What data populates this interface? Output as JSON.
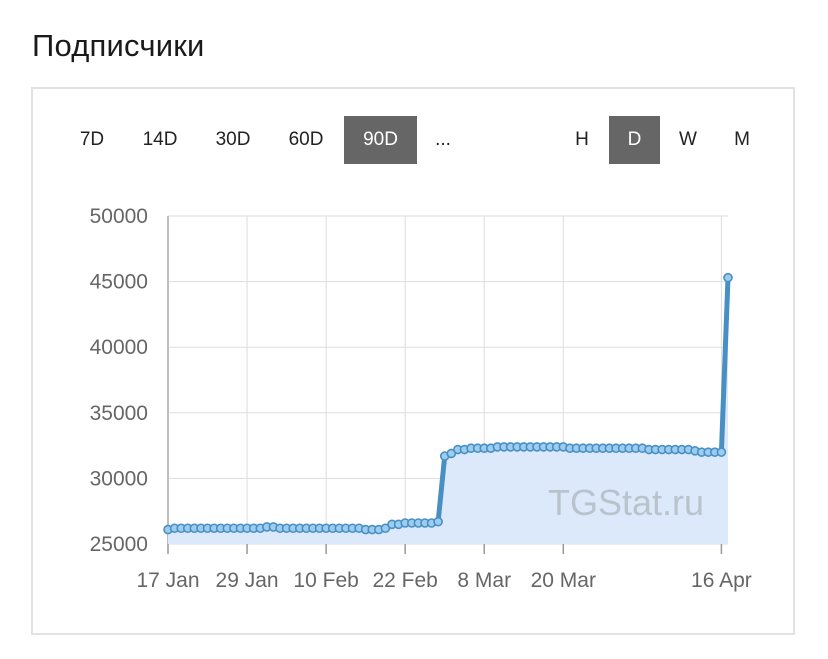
{
  "page": {
    "title": "Подписчики"
  },
  "range_buttons": [
    {
      "label": "7D",
      "active": false
    },
    {
      "label": "14D",
      "active": false
    },
    {
      "label": "30D",
      "active": false
    },
    {
      "label": "60D",
      "active": false
    },
    {
      "label": "90D",
      "active": true
    },
    {
      "label": "...",
      "active": false
    }
  ],
  "granularity_buttons": [
    {
      "label": "H",
      "active": false
    },
    {
      "label": "D",
      "active": true
    },
    {
      "label": "W",
      "active": false
    },
    {
      "label": "M",
      "active": false
    }
  ],
  "watermark": "TGStat.ru",
  "colors": {
    "line": "#4a8fc4",
    "fill": "#dce9fb",
    "marker_fill": "#9dcdee",
    "active_button": "#666666"
  },
  "chart_data": {
    "type": "area",
    "ylim": [
      25000,
      50000
    ],
    "yticks": [
      25000,
      30000,
      35000,
      40000,
      45000,
      50000
    ],
    "ytick_labels": [
      "25000",
      "30000",
      "35000",
      "40000",
      "45000",
      "50000"
    ],
    "xtick_labels": [
      "17 Jan",
      "29 Jan",
      "10 Feb",
      "22 Feb",
      "8 Mar",
      "20 Mar",
      "16 Apr"
    ],
    "xtick_index": [
      0,
      12,
      24,
      36,
      48,
      60,
      84
    ],
    "grid": true,
    "start_label": "17 Jan",
    "end_label": "16 Apr",
    "values": [
      26100,
      26200,
      26200,
      26200,
      26200,
      26200,
      26200,
      26200,
      26200,
      26200,
      26200,
      26200,
      26200,
      26200,
      26200,
      26300,
      26300,
      26200,
      26200,
      26200,
      26200,
      26200,
      26200,
      26200,
      26200,
      26200,
      26200,
      26200,
      26200,
      26200,
      26100,
      26100,
      26100,
      26200,
      26500,
      26500,
      26600,
      26600,
      26600,
      26600,
      26600,
      26700,
      31700,
      31900,
      32200,
      32200,
      32300,
      32300,
      32300,
      32300,
      32400,
      32400,
      32400,
      32400,
      32400,
      32400,
      32400,
      32400,
      32400,
      32400,
      32400,
      32300,
      32300,
      32300,
      32300,
      32300,
      32300,
      32300,
      32300,
      32300,
      32300,
      32300,
      32300,
      32200,
      32200,
      32200,
      32200,
      32200,
      32200,
      32200,
      32100,
      32000,
      32000,
      32000,
      32000,
      45300
    ]
  }
}
